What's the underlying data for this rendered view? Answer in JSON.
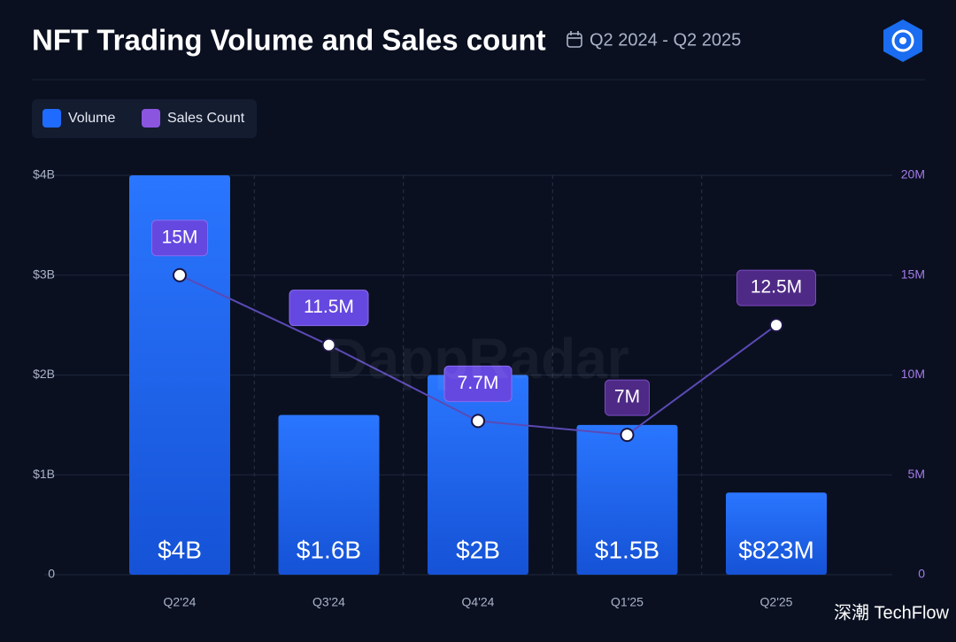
{
  "chart_data": {
    "type": "bar",
    "title": "NFT Trading Volume and Sales count",
    "subtitle": "Q2 2024 - Q2 2025",
    "watermark": "DappRadar",
    "source_watermark": "深潮 TechFlow",
    "categories": [
      "Q2'24",
      "Q3'24",
      "Q4'24",
      "Q1'25",
      "Q2'25"
    ],
    "series": [
      {
        "name": "Volume",
        "type": "bar",
        "color": "#1f6bff",
        "values": [
          4,
          1.6,
          2,
          1.5,
          0.823
        ],
        "value_labels": [
          "$4B",
          "$1.6B",
          "$2B",
          "$1.5B",
          "$823M"
        ]
      },
      {
        "name": "Sales Count",
        "type": "line",
        "axis": "y2",
        "color": "#8b55e0",
        "values": [
          15,
          11.5,
          7.7,
          7,
          12.5
        ],
        "value_labels": [
          "15M",
          "11.5M",
          "7.7M",
          "7M",
          "12.5M"
        ]
      }
    ],
    "ylim": [
      0,
      4
    ],
    "yticks": [
      0,
      {
        "value": 1,
        "label": "$1B"
      },
      {
        "value": 2,
        "label": "$2B"
      },
      {
        "value": 3,
        "label": "$3B"
      },
      {
        "value": 4,
        "label": "$4B"
      }
    ],
    "y2lim": [
      0,
      20
    ],
    "y2ticks": [
      0,
      {
        "value": 5,
        "label": "5M"
      },
      {
        "value": 10,
        "label": "10M"
      },
      {
        "value": 15,
        "label": "15M"
      },
      {
        "value": 20,
        "label": "20M"
      }
    ],
    "grid": true
  }
}
